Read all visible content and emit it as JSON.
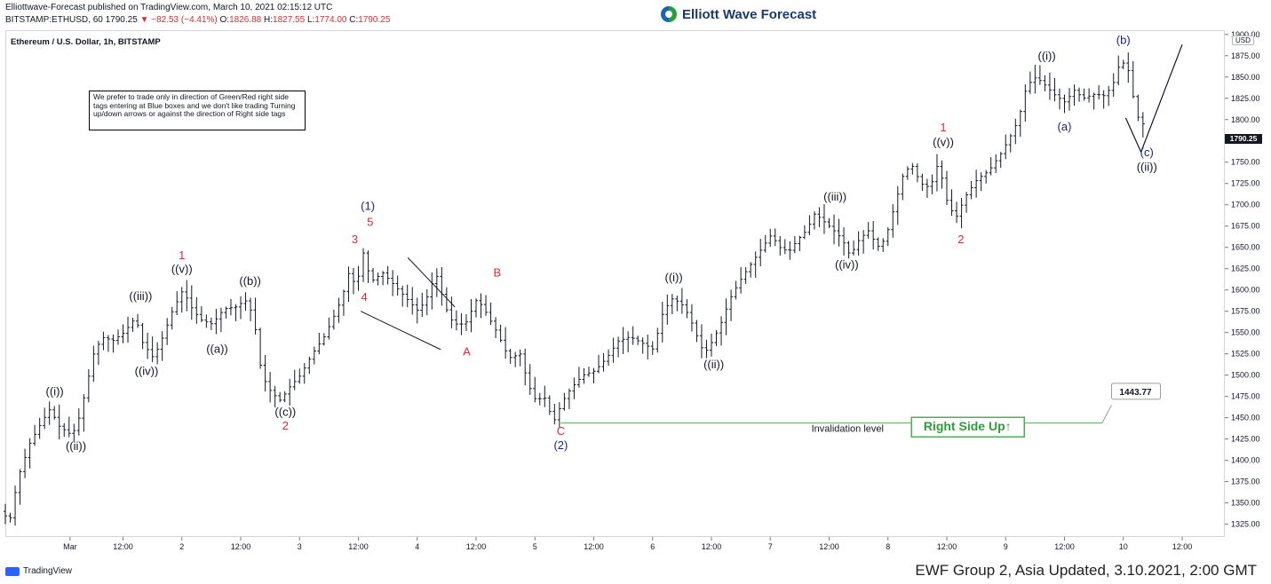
{
  "header": {
    "publisher_line": "Elliottwave-Forecast published on TradingView.com, March 10, 2021 02:15:12 UTC",
    "symbol": "BITSTAMP:ETHUSD, 60",
    "price": "1790.25",
    "change": "−82.53 (−4.41%)",
    "o_label": "O:",
    "o": "1826.88",
    "h_label": "H:",
    "h": "1827.55",
    "l_label": "L:",
    "l": "1774.00",
    "c_label": "C:",
    "c": "1790.25"
  },
  "brand": {
    "name": "Elliott Wave Forecast"
  },
  "chart_title": "Ethereum / U.S. Dollar, 1h, BITSTAMP",
  "note": "We prefer to trade only in direction of Green/Red right side tags entering at Blue boxes and we don't like trading Turning up/down arrows or against the direction of Right side tags",
  "currency_badge": "USD",
  "last_price_label": "1790.25",
  "invalidation_label": "Invalidation level",
  "invalidation_value": "1443.77",
  "right_side_tag": "Right Side Up↑",
  "footer": {
    "source": "TradingView",
    "caption": "EWF Group 2, Asia Updated, 3.10.2021, 2:00 GMT"
  },
  "colors": {
    "red": "#d32f2f",
    "blue": "#1a237e",
    "black": "#131722",
    "green": "#4caf50",
    "candle": "#131722"
  },
  "chart_data": {
    "type": "ohlc",
    "title": "Ethereum / U.S. Dollar, 1h, BITSTAMP",
    "ylim": [
      1310,
      1905
    ],
    "y_ticks": [
      1325,
      1350,
      1375,
      1400,
      1425,
      1450,
      1475,
      1500,
      1525,
      1550,
      1575,
      1600,
      1625,
      1650,
      1675,
      1700,
      1725,
      1750,
      1775,
      1800,
      1825,
      1850,
      1875,
      1900
    ],
    "x_ticks": [
      {
        "label": "Mar",
        "x": 0.55
      },
      {
        "label": "12:00",
        "x": 1.0
      },
      {
        "label": "2",
        "x": 1.5
      },
      {
        "label": "12:00",
        "x": 2.0
      },
      {
        "label": "3",
        "x": 2.5
      },
      {
        "label": "12:00",
        "x": 3.0
      },
      {
        "label": "4",
        "x": 3.5
      },
      {
        "label": "12:00",
        "x": 4.0
      },
      {
        "label": "5",
        "x": 4.5
      },
      {
        "label": "12:00",
        "x": 5.0
      },
      {
        "label": "6",
        "x": 5.5
      },
      {
        "label": "12:00",
        "x": 6.0
      },
      {
        "label": "7",
        "x": 6.5
      },
      {
        "label": "12:00",
        "x": 7.0
      },
      {
        "label": "8",
        "x": 7.5
      },
      {
        "label": "12:00",
        "x": 8.0
      },
      {
        "label": "9",
        "x": 8.5
      },
      {
        "label": "12:00",
        "x": 9.0
      },
      {
        "label": "10",
        "x": 9.5
      },
      {
        "label": "12:00",
        "x": 10.0
      }
    ],
    "price_path": [
      [
        0,
        1340
      ],
      [
        0.08,
        1330
      ],
      [
        0.15,
        1380
      ],
      [
        0.25,
        1420
      ],
      [
        0.35,
        1445
      ],
      [
        0.42,
        1460
      ],
      [
        0.5,
        1440
      ],
      [
        0.6,
        1430
      ],
      [
        0.65,
        1440
      ],
      [
        0.72,
        1480
      ],
      [
        0.8,
        1530
      ],
      [
        0.88,
        1545
      ],
      [
        0.95,
        1540
      ],
      [
        1.05,
        1550
      ],
      [
        1.15,
        1568
      ],
      [
        1.2,
        1540
      ],
      [
        1.3,
        1520
      ],
      [
        1.38,
        1545
      ],
      [
        1.46,
        1575
      ],
      [
        1.55,
        1600
      ],
      [
        1.62,
        1580
      ],
      [
        1.7,
        1565
      ],
      [
        1.8,
        1560
      ],
      [
        1.9,
        1578
      ],
      [
        2.0,
        1580
      ],
      [
        2.08,
        1588
      ],
      [
        2.15,
        1570
      ],
      [
        2.22,
        1500
      ],
      [
        2.3,
        1480
      ],
      [
        2.38,
        1470
      ],
      [
        2.45,
        1485
      ],
      [
        2.55,
        1500
      ],
      [
        2.65,
        1525
      ],
      [
        2.75,
        1545
      ],
      [
        2.82,
        1565
      ],
      [
        2.9,
        1590
      ],
      [
        2.97,
        1625
      ],
      [
        3.02,
        1600
      ],
      [
        3.08,
        1645
      ],
      [
        3.15,
        1610
      ],
      [
        3.25,
        1620
      ],
      [
        3.35,
        1605
      ],
      [
        3.45,
        1590
      ],
      [
        3.55,
        1575
      ],
      [
        3.62,
        1590
      ],
      [
        3.7,
        1620
      ],
      [
        3.78,
        1580
      ],
      [
        3.85,
        1560
      ],
      [
        3.95,
        1560
      ],
      [
        4.05,
        1590
      ],
      [
        4.12,
        1575
      ],
      [
        4.22,
        1550
      ],
      [
        4.32,
        1520
      ],
      [
        4.42,
        1525
      ],
      [
        4.48,
        1490
      ],
      [
        4.55,
        1470
      ],
      [
        4.62,
        1475
      ],
      [
        4.7,
        1445
      ],
      [
        4.78,
        1470
      ],
      [
        4.85,
        1485
      ],
      [
        4.95,
        1500
      ],
      [
        5.05,
        1505
      ],
      [
        5.15,
        1520
      ],
      [
        5.25,
        1540
      ],
      [
        5.35,
        1545
      ],
      [
        5.45,
        1538
      ],
      [
        5.55,
        1530
      ],
      [
        5.62,
        1570
      ],
      [
        5.7,
        1590
      ],
      [
        5.78,
        1585
      ],
      [
        5.85,
        1570
      ],
      [
        5.92,
        1545
      ],
      [
        5.98,
        1525
      ],
      [
        6.05,
        1540
      ],
      [
        6.12,
        1560
      ],
      [
        6.2,
        1590
      ],
      [
        6.28,
        1610
      ],
      [
        6.35,
        1625
      ],
      [
        6.45,
        1645
      ],
      [
        6.55,
        1665
      ],
      [
        6.62,
        1650
      ],
      [
        6.7,
        1645
      ],
      [
        6.78,
        1660
      ],
      [
        6.85,
        1670
      ],
      [
        6.92,
        1690
      ],
      [
        7.0,
        1680
      ],
      [
        7.08,
        1670
      ],
      [
        7.15,
        1660
      ],
      [
        7.22,
        1640
      ],
      [
        7.3,
        1660
      ],
      [
        7.38,
        1670
      ],
      [
        7.45,
        1650
      ],
      [
        7.52,
        1660
      ],
      [
        7.6,
        1700
      ],
      [
        7.68,
        1740
      ],
      [
        7.75,
        1745
      ],
      [
        7.82,
        1725
      ],
      [
        7.9,
        1720
      ],
      [
        7.97,
        1750
      ],
      [
        8.05,
        1700
      ],
      [
        8.12,
        1685
      ],
      [
        8.2,
        1710
      ],
      [
        8.3,
        1730
      ],
      [
        8.4,
        1740
      ],
      [
        8.5,
        1760
      ],
      [
        8.58,
        1780
      ],
      [
        8.65,
        1800
      ],
      [
        8.72,
        1840
      ],
      [
        8.8,
        1850
      ],
      [
        8.88,
        1840
      ],
      [
        8.95,
        1830
      ],
      [
        9.05,
        1820
      ],
      [
        9.12,
        1835
      ],
      [
        9.2,
        1825
      ],
      [
        9.3,
        1830
      ],
      [
        9.38,
        1828
      ],
      [
        9.45,
        1840
      ],
      [
        9.52,
        1870
      ],
      [
        9.58,
        1860
      ],
      [
        9.62,
        1830
      ],
      [
        9.68,
        1795
      ]
    ],
    "annotations": [
      {
        "text": "((i))",
        "x": 0.42,
        "y": 1476,
        "color": "black"
      },
      {
        "text": "((ii))",
        "x": 0.6,
        "y": 1412,
        "color": "black"
      },
      {
        "text": "((iii))",
        "x": 1.15,
        "y": 1588,
        "color": "black"
      },
      {
        "text": "((iv))",
        "x": 1.2,
        "y": 1500,
        "color": "black"
      },
      {
        "text": "1",
        "x": 1.5,
        "y": 1636,
        "color": "red"
      },
      {
        "text": "((v))",
        "x": 1.5,
        "y": 1620,
        "color": "black"
      },
      {
        "text": "((a))",
        "x": 1.8,
        "y": 1526,
        "color": "black"
      },
      {
        "text": "((b))",
        "x": 2.08,
        "y": 1606,
        "color": "black"
      },
      {
        "text": "((c))",
        "x": 2.38,
        "y": 1452,
        "color": "black"
      },
      {
        "text": "2",
        "x": 2.38,
        "y": 1436,
        "color": "red"
      },
      {
        "text": "(1)",
        "x": 3.08,
        "y": 1694,
        "color": "blue"
      },
      {
        "text": "5",
        "x": 3.1,
        "y": 1675,
        "color": "red"
      },
      {
        "text": "3",
        "x": 2.97,
        "y": 1655,
        "color": "red"
      },
      {
        "text": "4",
        "x": 3.05,
        "y": 1587,
        "color": "red"
      },
      {
        "text": "B",
        "x": 4.18,
        "y": 1616,
        "color": "red"
      },
      {
        "text": "A",
        "x": 3.92,
        "y": 1523,
        "color": "red"
      },
      {
        "text": "C",
        "x": 4.72,
        "y": 1430,
        "color": "red"
      },
      {
        "text": "(2)",
        "x": 4.72,
        "y": 1413,
        "color": "blue"
      },
      {
        "text": "((i))",
        "x": 5.68,
        "y": 1610,
        "color": "black"
      },
      {
        "text": "((ii))",
        "x": 6.02,
        "y": 1508,
        "color": "black"
      },
      {
        "text": "((iii))",
        "x": 7.05,
        "y": 1705,
        "color": "black"
      },
      {
        "text": "((iv))",
        "x": 7.15,
        "y": 1625,
        "color": "black"
      },
      {
        "text": "1",
        "x": 7.97,
        "y": 1786,
        "color": "red"
      },
      {
        "text": "((v))",
        "x": 7.97,
        "y": 1769,
        "color": "black"
      },
      {
        "text": "2",
        "x": 8.12,
        "y": 1655,
        "color": "red"
      },
      {
        "text": "((i))",
        "x": 8.85,
        "y": 1870,
        "color": "black"
      },
      {
        "text": "(a)",
        "x": 9.0,
        "y": 1787,
        "color": "blue"
      },
      {
        "text": "(b)",
        "x": 9.5,
        "y": 1889,
        "color": "blue"
      },
      {
        "text": "(c)",
        "x": 9.7,
        "y": 1757,
        "color": "blue"
      },
      {
        "text": "((ii))",
        "x": 9.7,
        "y": 1740,
        "color": "black"
      }
    ]
  }
}
